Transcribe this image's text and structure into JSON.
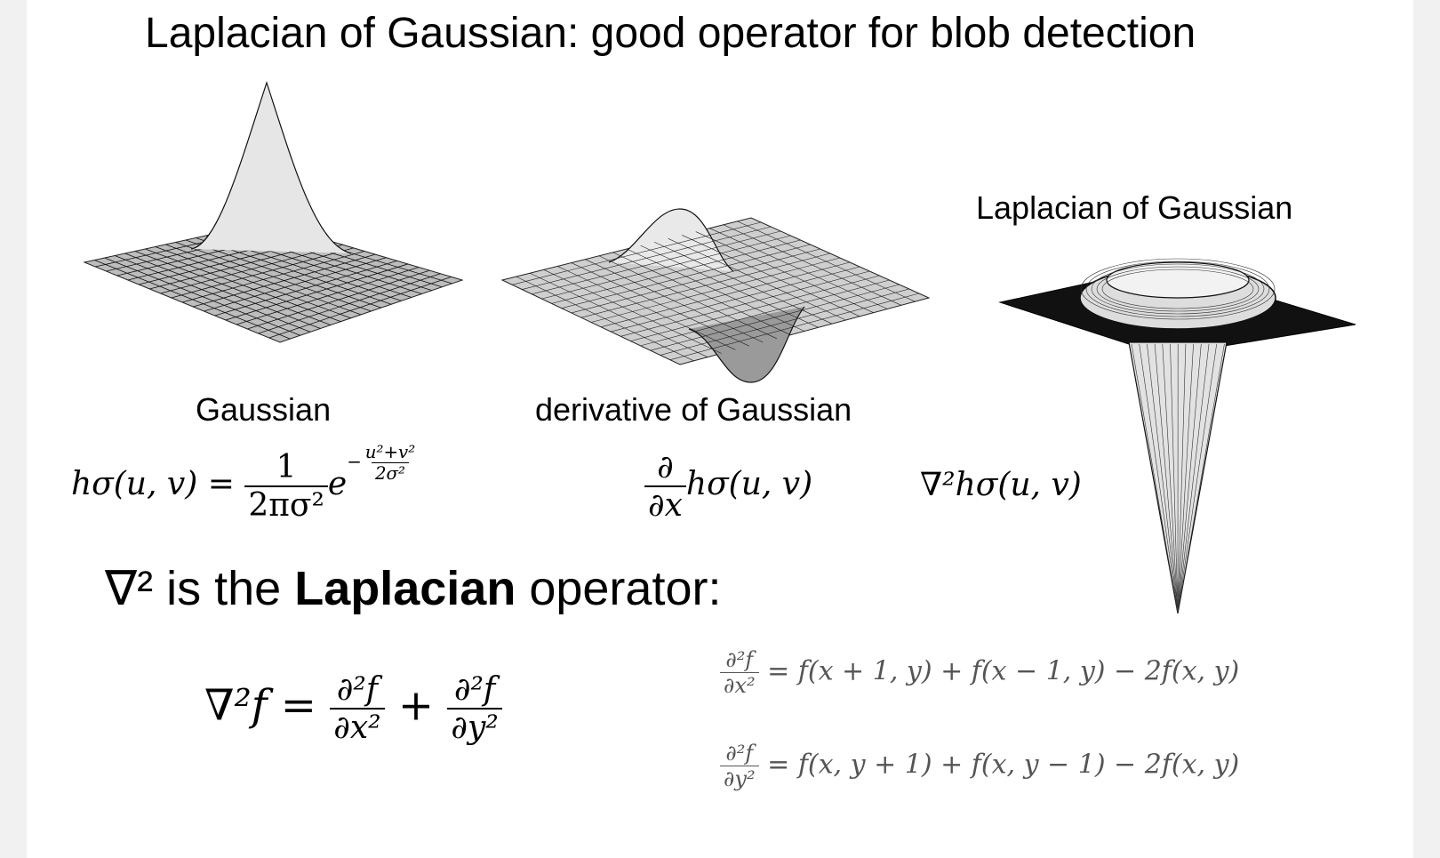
{
  "title": "Laplacian of Gaussian: good operator for blob detection",
  "panels": {
    "gaussian": {
      "label": "Gaussian"
    },
    "dog": {
      "label": "derivative of Gaussian"
    },
    "log": {
      "label": "Laplacian of Gaussian"
    }
  },
  "formulas": {
    "gaussian": {
      "lhs": "hσ(u, v) =",
      "num": "1",
      "den": "2πσ²",
      "base": "e",
      "exp_num": "u²+v²",
      "exp_den": "2σ²",
      "exp_sign": "−"
    },
    "dog": {
      "num": "∂",
      "den": "∂x",
      "rest": "hσ(u, v)"
    },
    "log": {
      "expr": "∇²hσ(u, v)"
    }
  },
  "laplacian_statement": {
    "symbol": "∇²",
    "pre": "is the",
    "bold": "Laplacian",
    "post": "operator:"
  },
  "laplacian_def": {
    "lhs": "∇²f =",
    "t1_num": "∂²f",
    "t1_den": "∂x²",
    "plus": "+",
    "t2_num": "∂²f",
    "t2_den": "∂y²"
  },
  "discrete": {
    "xx": {
      "num": "∂²f",
      "den": "∂x²",
      "rhs": "= f(x + 1, y) + f(x − 1, y) − 2f(x, y)"
    },
    "yy": {
      "num": "∂²f",
      "den": "∂y²",
      "rhs": "= f(x, y + 1) + f(x, y − 1) − 2f(x, y)"
    }
  }
}
